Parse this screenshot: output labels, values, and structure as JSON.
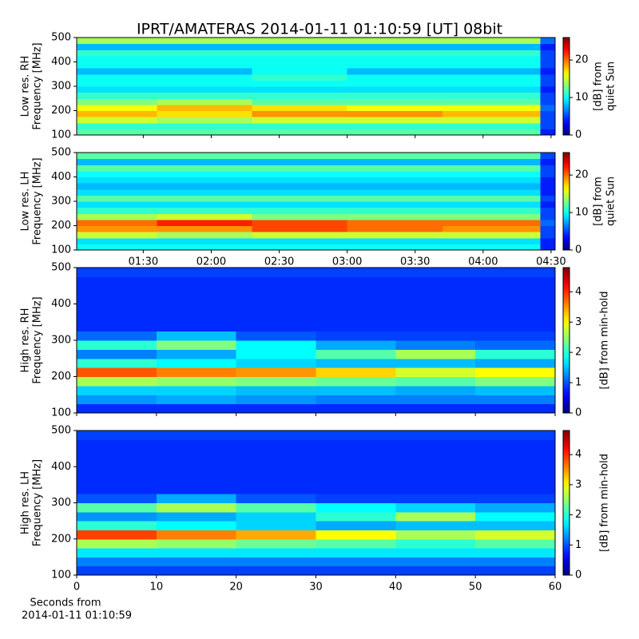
{
  "title": "IPRT/AMATERAS 2014-01-11 01:10:59 [UT]   08bit",
  "chart_data": [
    {
      "type": "heatmap",
      "ylabel": [
        "Low res. RH",
        "Frequency [MHz]"
      ],
      "cbar_label": [
        "[dB] from",
        "quiet Sun"
      ],
      "colormap": "jet",
      "clim": [
        0,
        26
      ],
      "cticks": [
        0,
        10,
        20
      ],
      "xlim": [
        1.01,
        4.53
      ],
      "sharex": true,
      "ylim": [
        100,
        500
      ],
      "yticks": [
        100,
        200,
        300,
        400,
        500
      ],
      "x_bins": [
        1.01,
        1.6,
        2.3,
        3.0,
        3.7,
        4.42,
        4.53
      ],
      "y_bins": [
        100,
        125,
        150,
        175,
        200,
        225,
        250,
        275,
        300,
        325,
        350,
        375,
        400,
        425,
        450,
        475,
        500
      ],
      "z": [
        [
          12,
          12,
          12,
          12,
          12,
          4
        ],
        [
          11,
          11,
          11,
          11,
          11,
          5
        ],
        [
          15,
          14,
          15,
          15,
          15,
          5
        ],
        [
          18,
          17,
          19,
          19,
          18,
          5
        ],
        [
          16,
          18,
          17,
          16,
          16,
          6
        ],
        [
          13,
          14,
          12,
          12,
          12,
          5
        ],
        [
          11,
          11,
          11,
          11,
          11,
          5
        ],
        [
          9,
          9,
          9,
          9,
          9,
          4
        ],
        [
          10,
          10,
          10,
          10,
          10,
          5
        ],
        [
          10,
          10,
          11,
          10,
          10,
          5
        ],
        [
          8,
          8,
          10,
          8,
          8,
          4
        ],
        [
          10,
          10,
          10,
          10,
          10,
          5
        ],
        [
          10,
          10,
          10,
          10,
          10,
          5
        ],
        [
          11,
          11,
          11,
          11,
          11,
          5
        ],
        [
          8,
          8,
          8,
          8,
          8,
          4
        ],
        [
          14,
          14,
          14,
          14,
          14,
          6
        ]
      ]
    },
    {
      "type": "heatmap",
      "ylabel": [
        "Low res. LH",
        "Frequency [MHz]"
      ],
      "cbar_label": [
        "[dB] from",
        "quiet Sun"
      ],
      "colormap": "jet",
      "clim": [
        0,
        26
      ],
      "cticks": [
        0,
        10,
        20
      ],
      "xlim": [
        1.01,
        4.53
      ],
      "xticks": [
        {
          "value": 1.5,
          "label": "01:30"
        },
        {
          "value": 2,
          "label": "02:00"
        },
        {
          "value": 2.5,
          "label": "02:30"
        },
        {
          "value": 3,
          "label": "03:00"
        },
        {
          "value": 3.5,
          "label": "03:30"
        },
        {
          "value": 4,
          "label": "04:00"
        },
        {
          "value": 4.5,
          "label": "04:30"
        }
      ],
      "ylim": [
        100,
        500
      ],
      "yticks": [
        100,
        200,
        300,
        400,
        500
      ],
      "x_bins": [
        1.01,
        1.6,
        2.3,
        3.0,
        3.7,
        4.42,
        4.53
      ],
      "y_bins": [
        100,
        125,
        150,
        175,
        200,
        225,
        250,
        275,
        300,
        325,
        350,
        375,
        400,
        425,
        450,
        475,
        500
      ],
      "z": [
        [
          10,
          10,
          10,
          10,
          10,
          4
        ],
        [
          9,
          9,
          9,
          9,
          9,
          4
        ],
        [
          15,
          14,
          15,
          15,
          15,
          5
        ],
        [
          19,
          19,
          21,
          20,
          19,
          5
        ],
        [
          20,
          22,
          21,
          20,
          20,
          6
        ],
        [
          14,
          15,
          13,
          13,
          13,
          5
        ],
        [
          11,
          11,
          11,
          11,
          11,
          5
        ],
        [
          9,
          9,
          9,
          9,
          9,
          4
        ],
        [
          12,
          12,
          12,
          12,
          12,
          5
        ],
        [
          9,
          9,
          9,
          9,
          9,
          4
        ],
        [
          8,
          8,
          8,
          8,
          8,
          4
        ],
        [
          9,
          9,
          9,
          9,
          9,
          4
        ],
        [
          10,
          10,
          10,
          10,
          10,
          5
        ],
        [
          12,
          12,
          12,
          12,
          12,
          5
        ],
        [
          8,
          8,
          8,
          8,
          8,
          4
        ],
        [
          12,
          12,
          12,
          12,
          12,
          5
        ]
      ]
    },
    {
      "type": "heatmap",
      "ylabel": [
        "High res. RH",
        "Frequency [MHz]"
      ],
      "cbar_label": [
        "[dB] from min-hold"
      ],
      "colormap": "jet",
      "clim": [
        0,
        4.8
      ],
      "cticks": [
        0,
        1,
        2,
        3,
        4
      ],
      "xlim": [
        0,
        60
      ],
      "sharex": true,
      "ylim": [
        100,
        500
      ],
      "yticks": [
        100,
        200,
        300,
        400,
        500
      ],
      "x_bins": [
        0,
        10,
        20,
        30,
        40,
        50,
        60
      ],
      "y_bins": [
        100,
        125,
        150,
        175,
        200,
        225,
        250,
        275,
        300,
        325,
        350,
        375,
        400,
        425,
        450,
        475,
        500
      ],
      "z": [
        [
          0.8,
          0.8,
          0.8,
          0.8,
          0.8,
          0.8
        ],
        [
          1.3,
          1.4,
          1.3,
          1.2,
          1.2,
          1.2
        ],
        [
          1.6,
          1.6,
          1.5,
          1.5,
          1.4,
          1.5
        ],
        [
          2.6,
          2.5,
          2.4,
          2.3,
          2.2,
          2.4
        ],
        [
          3.8,
          3.6,
          3.5,
          3.2,
          2.8,
          3.0
        ],
        [
          2.0,
          1.8,
          1.6,
          1.5,
          1.5,
          1.4
        ],
        [
          1.2,
          1.4,
          1.8,
          2.2,
          2.6,
          2.0
        ],
        [
          2.0,
          2.4,
          1.8,
          1.4,
          1.2,
          1.1
        ],
        [
          1.1,
          1.5,
          1.0,
          0.9,
          0.9,
          0.9
        ],
        [
          0.8,
          0.8,
          0.8,
          0.8,
          0.8,
          0.8
        ],
        [
          0.8,
          0.8,
          0.8,
          0.8,
          0.8,
          0.8
        ],
        [
          0.8,
          0.8,
          0.8,
          0.8,
          0.8,
          0.8
        ],
        [
          0.8,
          0.8,
          0.8,
          0.8,
          0.8,
          0.8
        ],
        [
          0.8,
          0.8,
          0.8,
          0.8,
          0.8,
          0.8
        ],
        [
          0.8,
          0.8,
          0.8,
          0.8,
          0.8,
          0.8
        ],
        [
          0.9,
          0.9,
          0.9,
          0.9,
          0.9,
          0.9
        ]
      ]
    },
    {
      "type": "heatmap",
      "ylabel": [
        "High res. LH",
        "Frequency [MHz]"
      ],
      "cbar_label": [
        "[dB] from min-hold"
      ],
      "colormap": "jet",
      "clim": [
        0,
        4.8
      ],
      "cticks": [
        0,
        1,
        2,
        3,
        4
      ],
      "xlim": [
        0,
        60
      ],
      "xticks": [
        0,
        10,
        20,
        30,
        40,
        50,
        60
      ],
      "xlabel": [
        "Seconds from",
        "2014-01-11 01:10:59"
      ],
      "ylim": [
        100,
        500
      ],
      "yticks": [
        100,
        200,
        300,
        400,
        500
      ],
      "x_bins": [
        0,
        10,
        20,
        30,
        40,
        50,
        60
      ],
      "y_bins": [
        100,
        125,
        150,
        175,
        200,
        225,
        250,
        275,
        300,
        325,
        350,
        375,
        400,
        425,
        450,
        475,
        500
      ],
      "z": [
        [
          0.9,
          0.9,
          0.9,
          0.9,
          0.9,
          0.9
        ],
        [
          1.2,
          1.2,
          1.2,
          1.2,
          1.2,
          1.2
        ],
        [
          1.7,
          1.7,
          1.7,
          1.7,
          1.7,
          1.7
        ],
        [
          2.6,
          2.5,
          2.3,
          2.2,
          2.0,
          2.2
        ],
        [
          3.9,
          3.6,
          3.4,
          3.0,
          2.6,
          2.8
        ],
        [
          2.0,
          1.8,
          1.6,
          1.4,
          1.5,
          1.5
        ],
        [
          1.3,
          1.4,
          1.6,
          2.0,
          2.6,
          1.8
        ],
        [
          2.2,
          2.6,
          2.2,
          1.8,
          1.6,
          1.4
        ],
        [
          1.0,
          1.4,
          1.0,
          0.9,
          0.9,
          0.9
        ],
        [
          0.8,
          0.8,
          0.8,
          0.8,
          0.8,
          0.8
        ],
        [
          0.8,
          0.8,
          0.8,
          0.8,
          0.8,
          0.8
        ],
        [
          0.8,
          0.8,
          0.8,
          0.8,
          0.8,
          0.8
        ],
        [
          0.8,
          0.8,
          0.8,
          0.8,
          0.8,
          0.8
        ],
        [
          0.8,
          0.8,
          0.8,
          0.8,
          0.8,
          0.8
        ],
        [
          0.8,
          0.8,
          0.8,
          0.8,
          0.8,
          0.8
        ],
        [
          0.9,
          0.9,
          0.9,
          0.9,
          0.9,
          0.9
        ]
      ]
    }
  ]
}
